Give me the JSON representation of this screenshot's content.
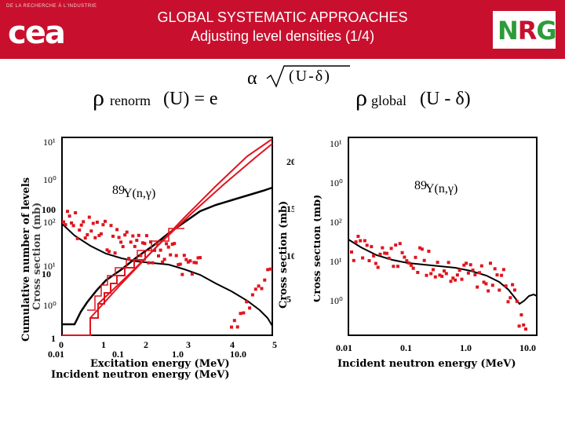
{
  "header": {
    "org_small_text": "DE LA RECHERCHE À L'INDUSTRIE",
    "org_logo_text": "cea",
    "title_line1": "GLOBAL SYSTEMATIC APPROACHES",
    "title_line2": "Adjusting level densities (1/4)",
    "partner_logo_text": "NRG",
    "accent_color": "#c8102e"
  },
  "formula": {
    "rho": "ρ",
    "renorm": "renorm",
    "u_equals_e": "(U) = e",
    "alpha": "α",
    "sqrt_argument": "(U-δ)",
    "global": "global",
    "u_minus_delta": "(U - δ)"
  },
  "left_panel": {
    "reaction": "Y(n,γ)",
    "mass_number": "89",
    "ylabel_levels": "Cumulative number of levels",
    "ylabel_cross": "Cross section (mb)",
    "ylabel_cross_right": "Cross section (mb)",
    "xlabel_top": "Excitation energy (MeV)",
    "xlabel_bottom": "Incident neutron energy (MeV)",
    "y_ticks_left": [
      "10¹",
      "10⁰",
      "100",
      "10²",
      "10¹",
      "10",
      "10⁰",
      "1"
    ],
    "y_ticks_right": [
      "20",
      "15",
      "10",
      "5"
    ],
    "x_ticks_energy": [
      "0",
      "1",
      "2",
      "3",
      "4",
      "5"
    ],
    "x_ticks_neutron": [
      "0.01",
      "0.1",
      "1.0",
      "10.0"
    ]
  },
  "right_panel": {
    "reaction": "Y(n,γ)",
    "mass_number": "89",
    "ylabel": "Cross section (mb)",
    "xlabel": "Incident neutron energy (MeV)",
    "y_ticks": [
      "10¹",
      "10⁰",
      "10²",
      "10¹",
      "10⁰"
    ],
    "x_ticks": [
      "0.01",
      "0.1",
      "1.0",
      "10.0"
    ]
  },
  "colors": {
    "data_red": "#e0141e",
    "curve_black": "#000000",
    "red_fit": "#e0141e"
  }
}
